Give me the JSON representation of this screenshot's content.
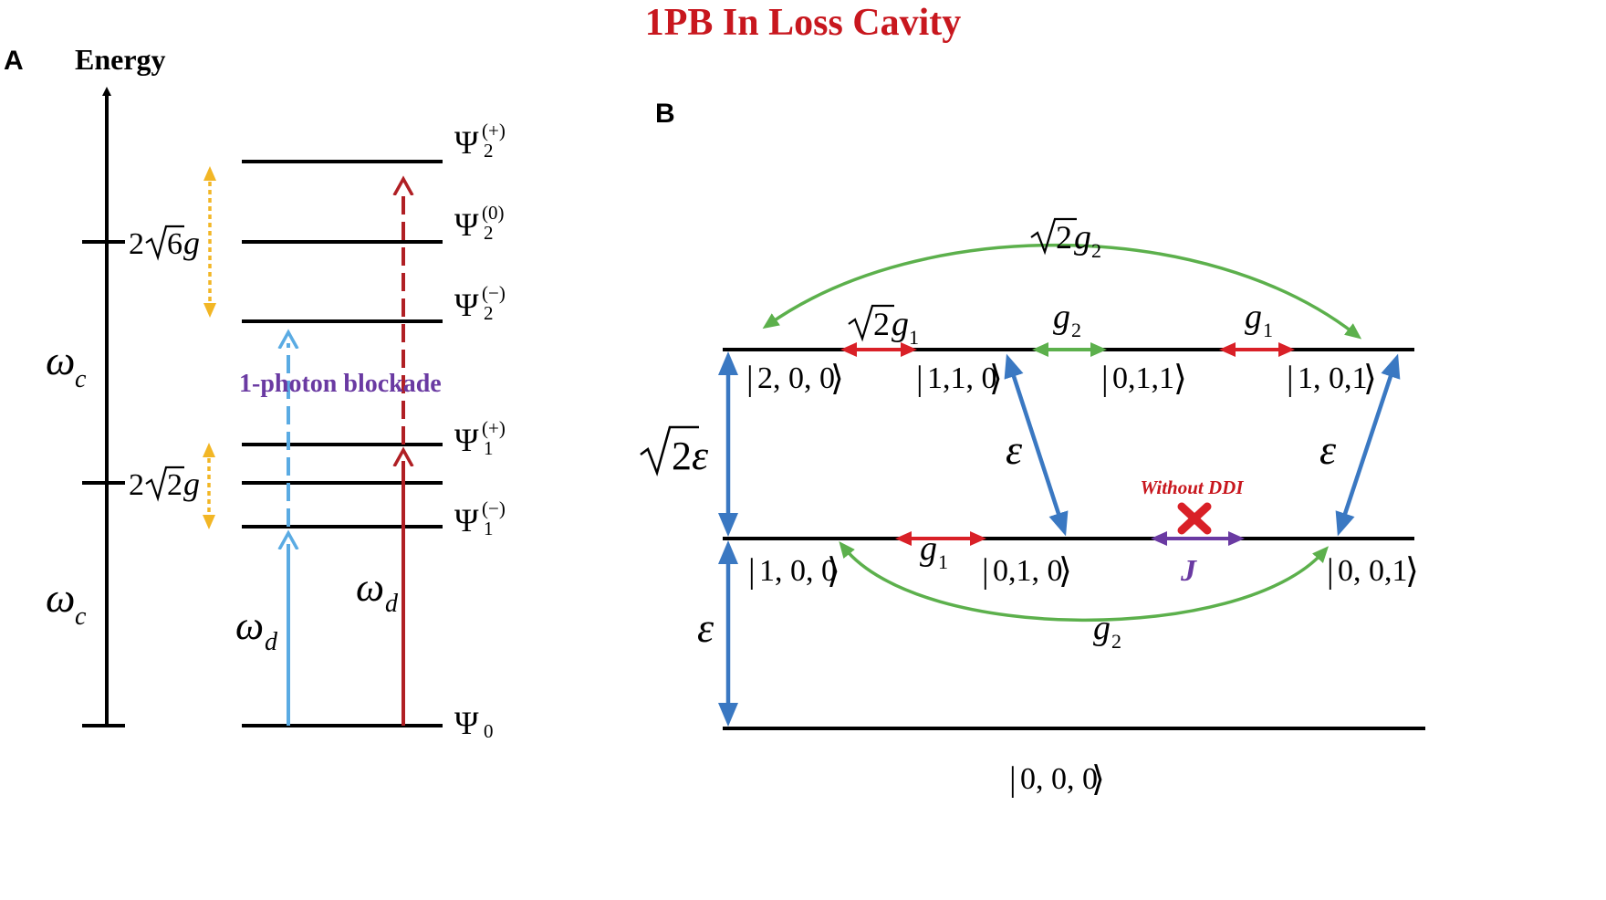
{
  "title": "1PB In Loss Cavity",
  "panel_a": {
    "label": "A",
    "axis_label": "Energy",
    "omega": "ω",
    "c_sub": "c",
    "d_sub": "d",
    "splitting_upper": {
      "coef": "2",
      "radicand": "6",
      "var": "g"
    },
    "splitting_lower": {
      "coef": "2",
      "radicand": "2",
      "var": "g"
    },
    "psi": "Ψ",
    "levels": [
      {
        "sub": "2",
        "sup": "(+)"
      },
      {
        "sub": "2",
        "sup": "(0)"
      },
      {
        "sub": "2",
        "sup": "(−)"
      },
      {
        "sub": "1",
        "sup": "(+)"
      },
      {
        "sub": "1",
        "sup": "(−)"
      },
      {
        "sub": "0",
        "sup": ""
      }
    ],
    "blockade": "1-photon blockade"
  },
  "panel_b": {
    "label": "B",
    "states_top": [
      "2, 0, 0",
      "1,1, 0",
      "0,1,1",
      "1, 0,1"
    ],
    "states_mid": [
      "1, 0, 0",
      "0,1, 0",
      "0, 0,1"
    ],
    "state_ground": "0, 0, 0",
    "eps": "ε",
    "sqrt2": "2",
    "g": "g",
    "sub1": "1",
    "sub2": "2",
    "without_ddi": "Without DDI",
    "J": "J"
  },
  "colors": {
    "title": "#c8171e",
    "blue": "#3a78c2",
    "light_blue": "#5aabe3",
    "dark_red": "#b01f24",
    "red": "#d92027",
    "green": "#5cb04c",
    "purple": "#6a3aa2",
    "yellow": "#f2b625"
  }
}
